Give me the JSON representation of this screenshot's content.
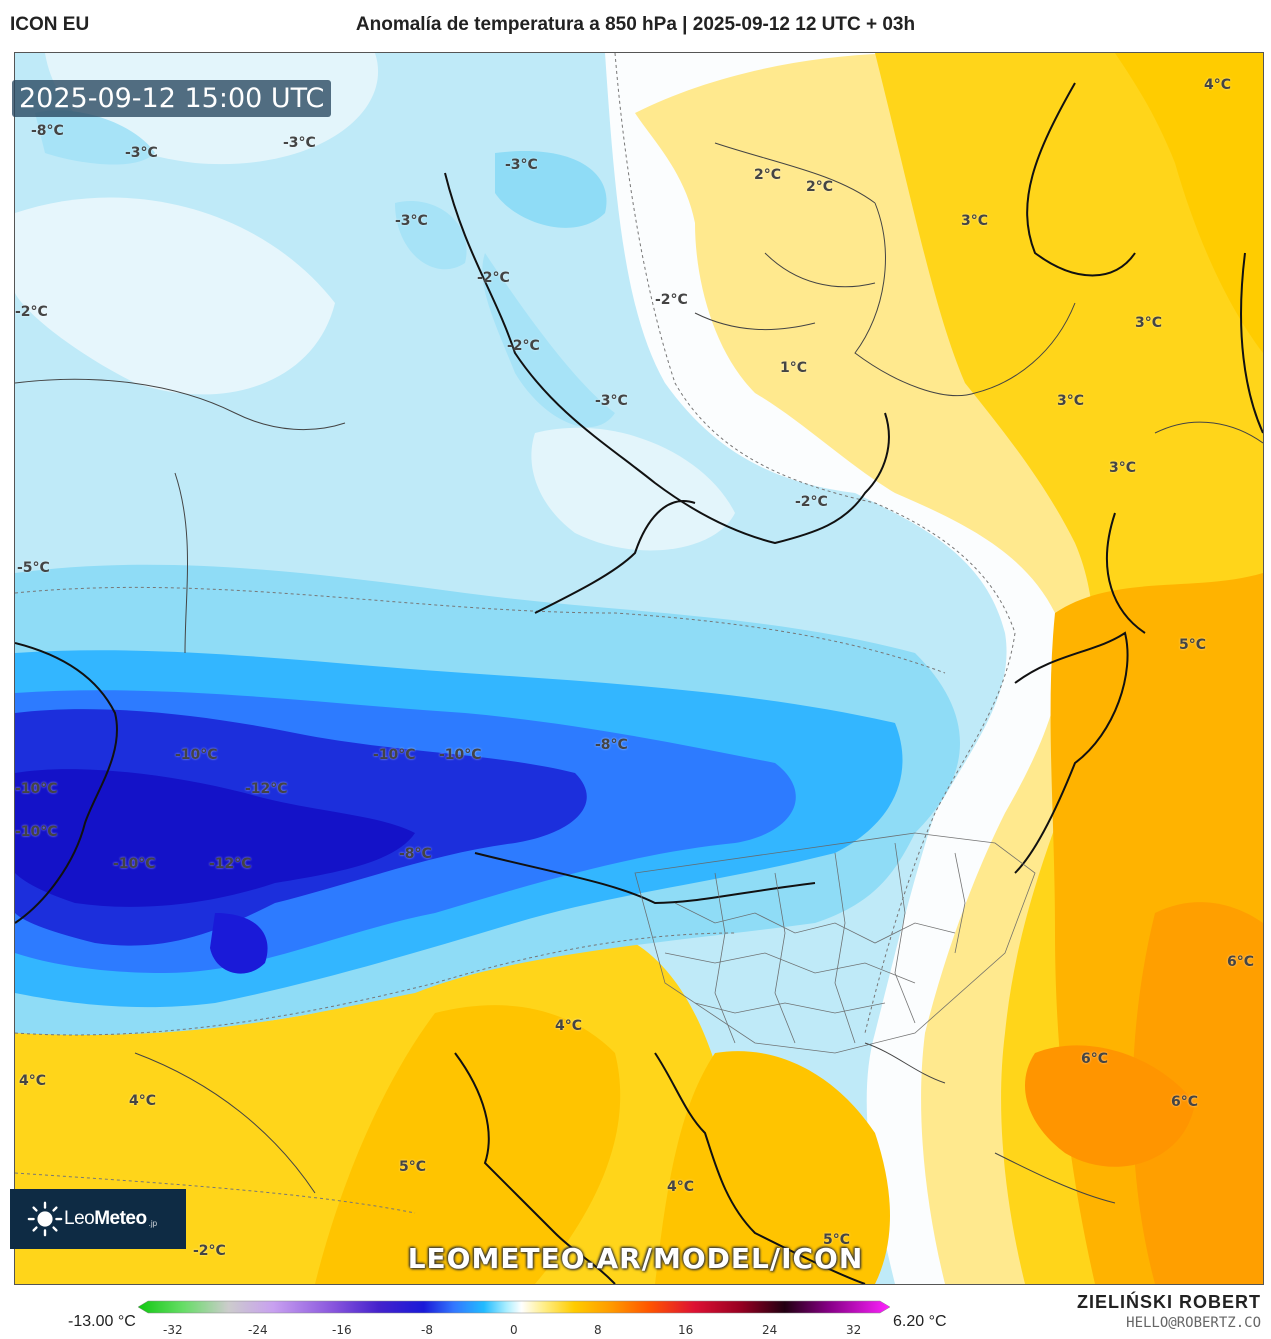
{
  "header": {
    "model": "ICON EU",
    "title": "Anomalía de temperatura a 850 hPa | 2025-09-12 12 UTC + 03h"
  },
  "map": {
    "valid_time": "2025-09-12 15:00 UTC",
    "watermark": "LEOMETEO.AR/MODEL/ICON",
    "labels": [
      {
        "id": "l1",
        "text": "-8°C"
      },
      {
        "id": "l2",
        "text": "-3°C"
      },
      {
        "id": "l3",
        "text": "-3°C"
      },
      {
        "id": "l4",
        "text": "-3°C"
      },
      {
        "id": "l5",
        "text": "-3°C"
      },
      {
        "id": "l6",
        "text": "-2°C"
      },
      {
        "id": "l7",
        "text": "-2°C"
      },
      {
        "id": "l8",
        "text": "-2°C"
      },
      {
        "id": "l9",
        "text": "-2°C"
      },
      {
        "id": "l10",
        "text": "-3°C"
      },
      {
        "id": "l11",
        "text": "-2°C"
      },
      {
        "id": "l12",
        "text": "-5°C"
      },
      {
        "id": "l13",
        "text": "2°C"
      },
      {
        "id": "l14",
        "text": "2°C"
      },
      {
        "id": "l15",
        "text": "3°C"
      },
      {
        "id": "l16",
        "text": "4°C"
      },
      {
        "id": "l17",
        "text": "3°C"
      },
      {
        "id": "l18",
        "text": "1°C"
      },
      {
        "id": "l19",
        "text": "3°C"
      },
      {
        "id": "l20",
        "text": "3°C"
      },
      {
        "id": "l21",
        "text": "5°C"
      },
      {
        "id": "l22",
        "text": "-10°C"
      },
      {
        "id": "l23",
        "text": "-10°C"
      },
      {
        "id": "l24",
        "text": "-10°C"
      },
      {
        "id": "l25",
        "text": "-8°C"
      },
      {
        "id": "l26",
        "text": "-10°C"
      },
      {
        "id": "l27",
        "text": "-12°C"
      },
      {
        "id": "l28",
        "text": "-10°C"
      },
      {
        "id": "l29",
        "text": "-10°C"
      },
      {
        "id": "l30",
        "text": "-12°C"
      },
      {
        "id": "l31",
        "text": "-8°C"
      },
      {
        "id": "l32",
        "text": "6°C"
      },
      {
        "id": "l33",
        "text": "4°C"
      },
      {
        "id": "l34",
        "text": "4°C"
      },
      {
        "id": "l35",
        "text": "4°C"
      },
      {
        "id": "l36",
        "text": "6°C"
      },
      {
        "id": "l37",
        "text": "6°C"
      },
      {
        "id": "l38",
        "text": "5°C"
      },
      {
        "id": "l39",
        "text": "4°C"
      },
      {
        "id": "l40",
        "text": "5°C"
      },
      {
        "id": "l41",
        "text": "-2°C"
      }
    ]
  },
  "logo": {
    "name_light": "Leo",
    "name_bold": "Meteo",
    "suffix": ".jp"
  },
  "colorbar": {
    "min_label": "-13.00 °C",
    "max_label": "6.20 °C",
    "ticks": [
      "-32",
      "-24",
      "-16",
      "-8",
      "0",
      "8",
      "16",
      "24",
      "32"
    ],
    "colors": [
      "#11c811",
      "#66dd66",
      "#bbbbbb",
      "#c8a0f0",
      "#8855dd",
      "#4422cc",
      "#1a1ad8",
      "#3377ff",
      "#22bbff",
      "#aaeeff",
      "#ffffff",
      "#ffee88",
      "#ffcc00",
      "#ff9900",
      "#ff5500",
      "#dd1133",
      "#990022",
      "#220011",
      "#880088",
      "#ff22ff"
    ]
  },
  "author": {
    "name": "ZIELIŃSKI ROBERT",
    "email": "HELLO@ROBERTZ.CO"
  }
}
